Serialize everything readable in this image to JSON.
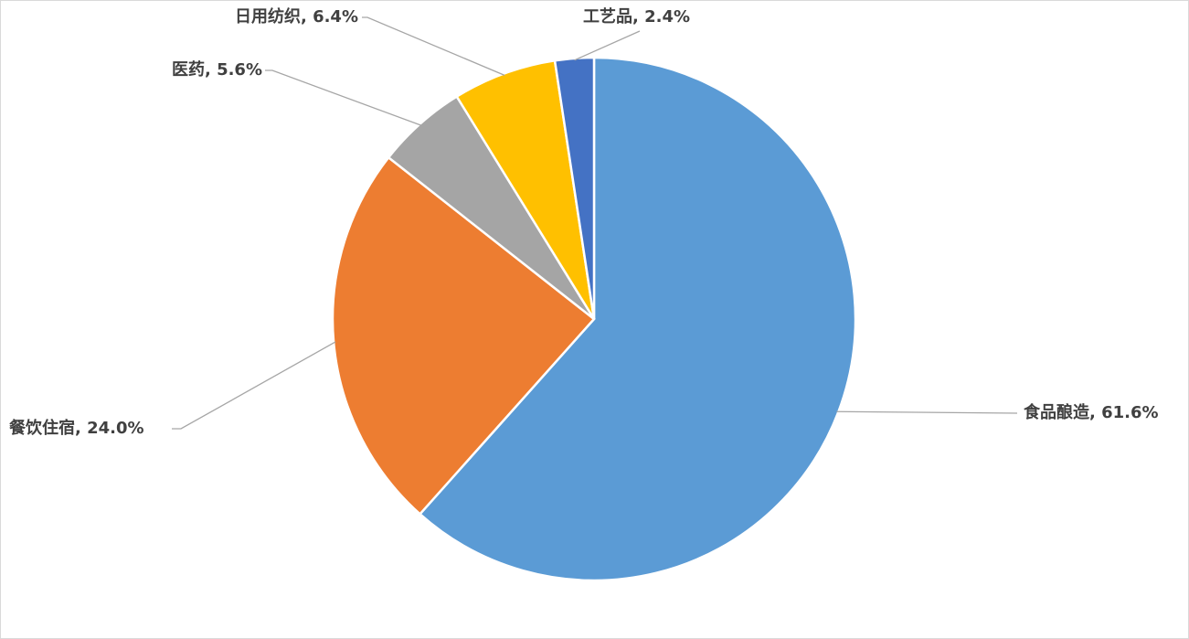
{
  "chart_data": {
    "type": "pie",
    "values": [
      61.6,
      24.0,
      5.6,
      6.4,
      2.4
    ],
    "value_labels": [
      "食品酿造, 61.6%",
      "餐饮住宿, 24.0%",
      "医药, 5.6%",
      "日用纺织, 6.4%",
      "工艺品, 2.4%"
    ],
    "colors": [
      "#5b9bd5",
      "#ed7d31",
      "#a5a5a5",
      "#ffc000",
      "#4472c4"
    ]
  }
}
